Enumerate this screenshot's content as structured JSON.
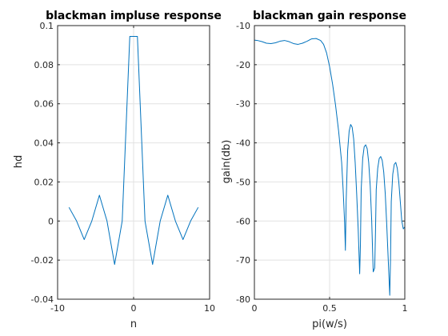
{
  "chart_data": [
    {
      "type": "line",
      "title": "blackman impluse response",
      "xlabel": "n",
      "ylabel": "hd",
      "xlim": [
        -10,
        10
      ],
      "ylim": [
        -0.04,
        0.1
      ],
      "xticks": [
        -10,
        0,
        10
      ],
      "xtick_labels": [
        "-10",
        "0",
        "10"
      ],
      "yticks": [
        -0.04,
        -0.02,
        0,
        0.02,
        0.04,
        0.06,
        0.08,
        0.1
      ],
      "ytick_labels": [
        "-0.04",
        "-0.02",
        "0",
        "0.02",
        "0.04",
        "0.06",
        "0.08",
        "0.1"
      ],
      "grid": true,
      "color": "#0072bd",
      "series": [
        {
          "x": [
            -8.5,
            -7.5,
            -6.5,
            -5.5,
            -4.5,
            -3.5,
            -2.5,
            -1.5,
            -0.5,
            0.5,
            1.5,
            2.5,
            3.5,
            4.5,
            5.5,
            6.5,
            7.5,
            8.5
          ],
          "y": [
            0.007,
            0.0,
            -0.0095,
            0.0,
            0.0132,
            0.0,
            -0.0222,
            0.0,
            0.0945,
            0.0945,
            0.0,
            -0.0222,
            0.0,
            0.0132,
            0.0,
            -0.0095,
            0.0,
            0.007
          ]
        }
      ]
    },
    {
      "type": "line",
      "title": "blackman gain response",
      "xlabel": "pi(w/s)",
      "ylabel": "gain(db)",
      "xlim": [
        0,
        1
      ],
      "ylim": [
        -80,
        -10
      ],
      "xticks": [
        0,
        0.5,
        1
      ],
      "xtick_labels": [
        "0",
        "0.5",
        "1"
      ],
      "yticks": [
        -80,
        -70,
        -60,
        -50,
        -40,
        -30,
        -20,
        -10
      ],
      "ytick_labels": [
        "-80",
        "-70",
        "-60",
        "-50",
        "-40",
        "-30",
        "-20",
        "-10"
      ],
      "grid": true,
      "color": "#0072bd",
      "series": [
        {
          "x": [
            0,
            0.02,
            0.05,
            0.08,
            0.11,
            0.14,
            0.17,
            0.2,
            0.23,
            0.26,
            0.29,
            0.32,
            0.35,
            0.38,
            0.41,
            0.44,
            0.46,
            0.48,
            0.5,
            0.52,
            0.54,
            0.56,
            0.58,
            0.59,
            0.6,
            0.605,
            0.61,
            0.62,
            0.63,
            0.64,
            0.65,
            0.66,
            0.67,
            0.68,
            0.69,
            0.7,
            0.705,
            0.71,
            0.72,
            0.73,
            0.74,
            0.75,
            0.76,
            0.77,
            0.78,
            0.79,
            0.8,
            0.805,
            0.81,
            0.82,
            0.83,
            0.84,
            0.85,
            0.86,
            0.87,
            0.88,
            0.89,
            0.9,
            0.905,
            0.91,
            0.92,
            0.93,
            0.94,
            0.95,
            0.96,
            0.97,
            0.98,
            0.99,
            1.0
          ],
          "y": [
            -13.7,
            -13.8,
            -14.1,
            -14.5,
            -14.6,
            -14.4,
            -14.0,
            -13.8,
            -14.1,
            -14.6,
            -14.8,
            -14.5,
            -14.0,
            -13.4,
            -13.3,
            -13.8,
            -14.8,
            -17.0,
            -20.5,
            -25.0,
            -30.5,
            -37.0,
            -45.0,
            -52.0,
            -60.5,
            -67.5,
            -55.0,
            -42.0,
            -37.0,
            -35.3,
            -36.0,
            -39.0,
            -45.0,
            -53.0,
            -62.0,
            -73.5,
            -66.0,
            -52.0,
            -44.0,
            -41.0,
            -40.5,
            -41.5,
            -45.0,
            -51.0,
            -60.0,
            -73.0,
            -72.0,
            -63.0,
            -52.0,
            -46.5,
            -44.0,
            -43.5,
            -44.5,
            -47.5,
            -53.0,
            -61.0,
            -70.0,
            -79.0,
            -70.0,
            -55.0,
            -48.0,
            -45.5,
            -45.0,
            -46.5,
            -50.0,
            -55.0,
            -60.0,
            -62.0,
            -61.5
          ]
        }
      ]
    }
  ]
}
